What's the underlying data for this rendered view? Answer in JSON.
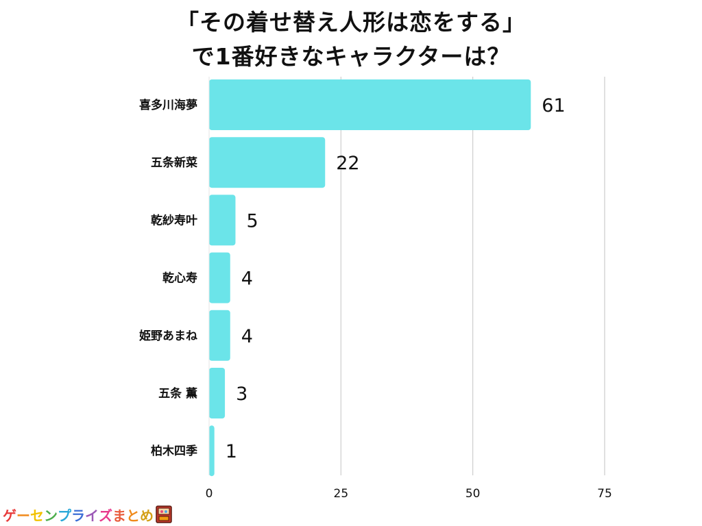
{
  "title": {
    "line1": "「その着せ替え人形は恋をする」",
    "line2": "で1番好きなキャラクターは？"
  },
  "chart_data": {
    "type": "bar",
    "orientation": "horizontal",
    "categories": [
      "喜多川海夢",
      "五条新菜",
      "乾紗寿叶",
      "乾心寿",
      "姫野あまね",
      "五条 薫",
      "柏木四季"
    ],
    "values": [
      61,
      22,
      5,
      4,
      4,
      3,
      1
    ],
    "xlim": [
      0,
      75
    ],
    "xticks": [
      0,
      25,
      50,
      75
    ],
    "grid": true,
    "bar_color": "#6be4e9",
    "grid_color": "#cccccc"
  },
  "brand": {
    "text": "ゲーセンプライズまとめ",
    "icon": "prize-box-icon",
    "colors": [
      "#e83a3a",
      "#f08a1c",
      "#f2c200",
      "#4cae4c",
      "#2aa8d8",
      "#3d6fd6",
      "#9b59b6",
      "#e83a8c",
      "#e85a3a",
      "#f08a1c",
      "#d4a017"
    ]
  }
}
